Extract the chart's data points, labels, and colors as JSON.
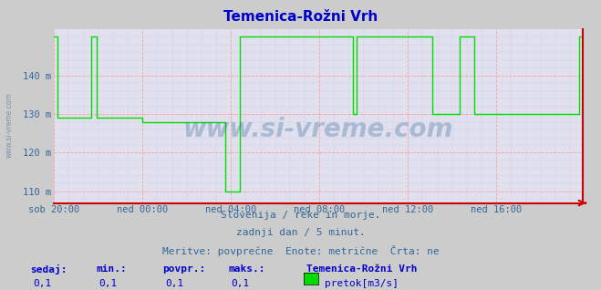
{
  "title": "Temenica-Rožni Vrh",
  "title_color": "#0000cc",
  "title_fontsize": 11,
  "bg_color": "#cccccc",
  "plot_bg_color": "#e0e0ee",
  "line_color": "#00dd00",
  "line_width": 1.0,
  "yticks": [
    110,
    120,
    130,
    140
  ],
  "ytick_labels": [
    "110 m",
    "120 m",
    "130 m",
    "140 m"
  ],
  "ylim": [
    107,
    152
  ],
  "xlim": [
    0,
    287
  ],
  "xtick_positions": [
    0,
    48,
    96,
    144,
    192,
    240
  ],
  "xtick_labels": [
    "sob 20:00",
    "ned 00:00",
    "ned 04:00",
    "ned 08:00",
    "ned 12:00",
    "ned 16:00"
  ],
  "grid_color_major": "#ff9999",
  "grid_color_minor": "#ccccdd",
  "watermark": "www.si-vreme.com",
  "subtitle1": "Slovenija / reke in morje.",
  "subtitle2": "zadnji dan / 5 minut.",
  "subtitle3": "Meritve: povprečne  Enote: metrične  Črta: ne",
  "subtitle_color": "#336699",
  "subtitle_fontsize": 8,
  "legend_label": "Temenica-Rožni Vrh",
  "legend_unit": "pretok[m3/s]",
  "legend_color": "#00dd00",
  "stat_labels": [
    "sedaj:",
    "min.:",
    "povpr.:",
    "maks.:"
  ],
  "stat_values": [
    "0,1",
    "0,1",
    "0,1",
    "0,1"
  ],
  "stat_color": "#0000cc",
  "sidewatermark": "www.si-vreme.com",
  "data_y": [
    150,
    150,
    129,
    129,
    129,
    129,
    129,
    129,
    129,
    129,
    129,
    129,
    129,
    129,
    129,
    129,
    129,
    129,
    129,
    129,
    150,
    150,
    150,
    129,
    129,
    129,
    129,
    129,
    129,
    129,
    129,
    129,
    129,
    129,
    129,
    129,
    129,
    129,
    129,
    129,
    129,
    129,
    129,
    129,
    129,
    129,
    129,
    129,
    128,
    128,
    128,
    128,
    128,
    128,
    128,
    128,
    128,
    128,
    128,
    128,
    128,
    128,
    128,
    128,
    128,
    128,
    128,
    128,
    128,
    128,
    128,
    128,
    128,
    128,
    128,
    128,
    128,
    128,
    128,
    128,
    128,
    128,
    128,
    128,
    128,
    128,
    128,
    128,
    128,
    128,
    128,
    128,
    128,
    110,
    110,
    110,
    110,
    110,
    110,
    110,
    110,
    150,
    150,
    150,
    150,
    150,
    150,
    150,
    150,
    150,
    150,
    150,
    150,
    150,
    150,
    150,
    150,
    150,
    150,
    150,
    150,
    150,
    150,
    150,
    150,
    150,
    150,
    150,
    150,
    150,
    150,
    150,
    150,
    150,
    150,
    150,
    150,
    150,
    150,
    150,
    150,
    150,
    150,
    150,
    150,
    150,
    150,
    150,
    150,
    150,
    150,
    150,
    150,
    150,
    150,
    150,
    150,
    150,
    150,
    150,
    150,
    150,
    130,
    130,
    150,
    150,
    150,
    150,
    150,
    150,
    150,
    150,
    150,
    150,
    150,
    150,
    150,
    150,
    150,
    150,
    150,
    150,
    150,
    150,
    150,
    150,
    150,
    150,
    150,
    150,
    150,
    150,
    150,
    150,
    150,
    150,
    150,
    150,
    150,
    150,
    150,
    150,
    150,
    150,
    150,
    130,
    130,
    130,
    130,
    130,
    130,
    130,
    130,
    130,
    130,
    130,
    130,
    130,
    130,
    130,
    150,
    150,
    150,
    150,
    150,
    150,
    150,
    150,
    130,
    130,
    130,
    130,
    130,
    130,
    130,
    130,
    130,
    130,
    130,
    130,
    130,
    130,
    130,
    130,
    130,
    130,
    130,
    130,
    130,
    130,
    130,
    130,
    130,
    130,
    130,
    130,
    130,
    130,
    130,
    130,
    130,
    130,
    130,
    130,
    130,
    130,
    130,
    130,
    130,
    130,
    130,
    130,
    130,
    130,
    130,
    130,
    130,
    130,
    130,
    130,
    130,
    130,
    130,
    130,
    130,
    150,
    150,
    150
  ]
}
